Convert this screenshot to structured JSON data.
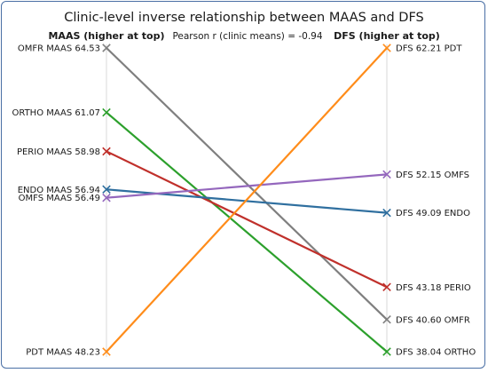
{
  "chart_data": {
    "type": "slope",
    "title": "Clinic-level inverse relationship between MAAS and DFS",
    "annotation": "Pearson r (clinic means) = -0.94",
    "left_axis_title": "MAAS (higher at top)",
    "right_axis_title": "DFS (higher at top)",
    "left_metric": "MAAS",
    "right_metric": "DFS",
    "series": [
      {
        "name": "OMFR",
        "maas": 64.53,
        "dfs": 40.6,
        "color": "#7f7f7f"
      },
      {
        "name": "ORTHO",
        "maas": 61.07,
        "dfs": 38.04,
        "color": "#2ca02c"
      },
      {
        "name": "PERIO",
        "maas": 58.98,
        "dfs": 43.18,
        "color": "#c0302b"
      },
      {
        "name": "ENDO",
        "maas": 56.94,
        "dfs": 49.09,
        "color": "#2f6f9f"
      },
      {
        "name": "OMFS",
        "maas": 56.49,
        "dfs": 52.15,
        "color": "#9467bd"
      },
      {
        "name": "PDT",
        "maas": 48.23,
        "dfs": 62.21,
        "color": "#ff8c1a"
      }
    ],
    "maas_range": [
      48.23,
      64.53
    ],
    "dfs_range": [
      38.04,
      62.21
    ],
    "grid": false,
    "marker": "x"
  }
}
